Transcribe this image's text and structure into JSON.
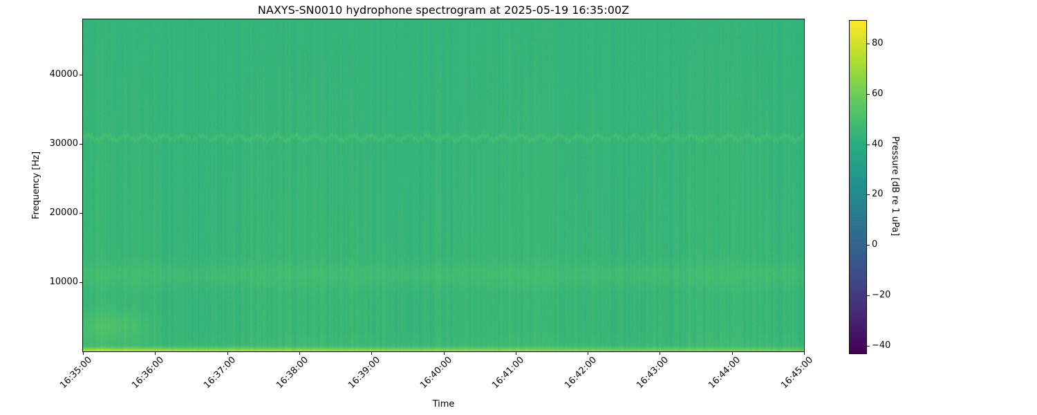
{
  "chart_data": {
    "type": "heatmap",
    "title": "NAXYS-SN0010 hydrophone spectrogram at 2025-05-19 16:35:00Z",
    "xlabel": "Time",
    "ylabel": "Frequency [Hz]",
    "colorbar_label": "Pressure [dB re 1 uPa]",
    "colormap": "viridis",
    "grid": false,
    "x_range_s": [
      0,
      600
    ],
    "y_range_hz": [
      0,
      48000
    ],
    "x_ticks": [
      {
        "label": "16:35:00",
        "seconds": 0
      },
      {
        "label": "16:36:00",
        "seconds": 60
      },
      {
        "label": "16:37:00",
        "seconds": 120
      },
      {
        "label": "16:38:00",
        "seconds": 180
      },
      {
        "label": "16:39:00",
        "seconds": 240
      },
      {
        "label": "16:40:00",
        "seconds": 300
      },
      {
        "label": "16:41:00",
        "seconds": 360
      },
      {
        "label": "16:42:00",
        "seconds": 420
      },
      {
        "label": "16:43:00",
        "seconds": 480
      },
      {
        "label": "16:44:00",
        "seconds": 540
      },
      {
        "label": "16:45:00",
        "seconds": 600
      }
    ],
    "y_ticks": [
      {
        "label": "10000",
        "hz": 10000
      },
      {
        "label": "20000",
        "hz": 20000
      },
      {
        "label": "30000",
        "hz": 30000
      },
      {
        "label": "40000",
        "hz": 40000
      }
    ],
    "color_scale": {
      "vmin": -43,
      "vmax": 89,
      "ticks": [
        {
          "label": "80",
          "value": 80
        },
        {
          "label": "60",
          "value": 60
        },
        {
          "label": "40",
          "value": 40
        },
        {
          "label": "20",
          "value": 20
        },
        {
          "label": "0",
          "value": 0
        },
        {
          "label": "−20",
          "value": -20
        },
        {
          "label": "−40",
          "value": -40
        }
      ]
    },
    "field_model": {
      "background_db": 45.3,
      "background_slope_db": -1.6,
      "column_noise_db": 1.6,
      "pixel_noise_db": 1.1,
      "features": [
        {
          "name": "broadband-surface-noise",
          "type": "band",
          "freq_hz": [
            0,
            900
          ],
          "level_db_at_start": 77,
          "level_db_at_end": 61
        },
        {
          "name": "low-frequency-shelf",
          "type": "band",
          "freq_hz": [
            0,
            3000
          ],
          "boost_db": 1.5
        },
        {
          "name": "mid-band",
          "type": "gaussian-band",
          "center_hz": 11000,
          "sigma_hz": 1300,
          "boost_db": 3.0
        },
        {
          "name": "wavy-tonal",
          "type": "fm-tone",
          "center_hz": 30900,
          "deviation_hz": 430,
          "sigma_hz": 260,
          "boost_db": 4.5
        },
        {
          "name": "startup-blob",
          "type": "blob",
          "center_s": 22,
          "sigma_s": 20,
          "center_hz": 3600,
          "sigma_hz": 1500,
          "boost_db": 6.0
        }
      ]
    }
  }
}
